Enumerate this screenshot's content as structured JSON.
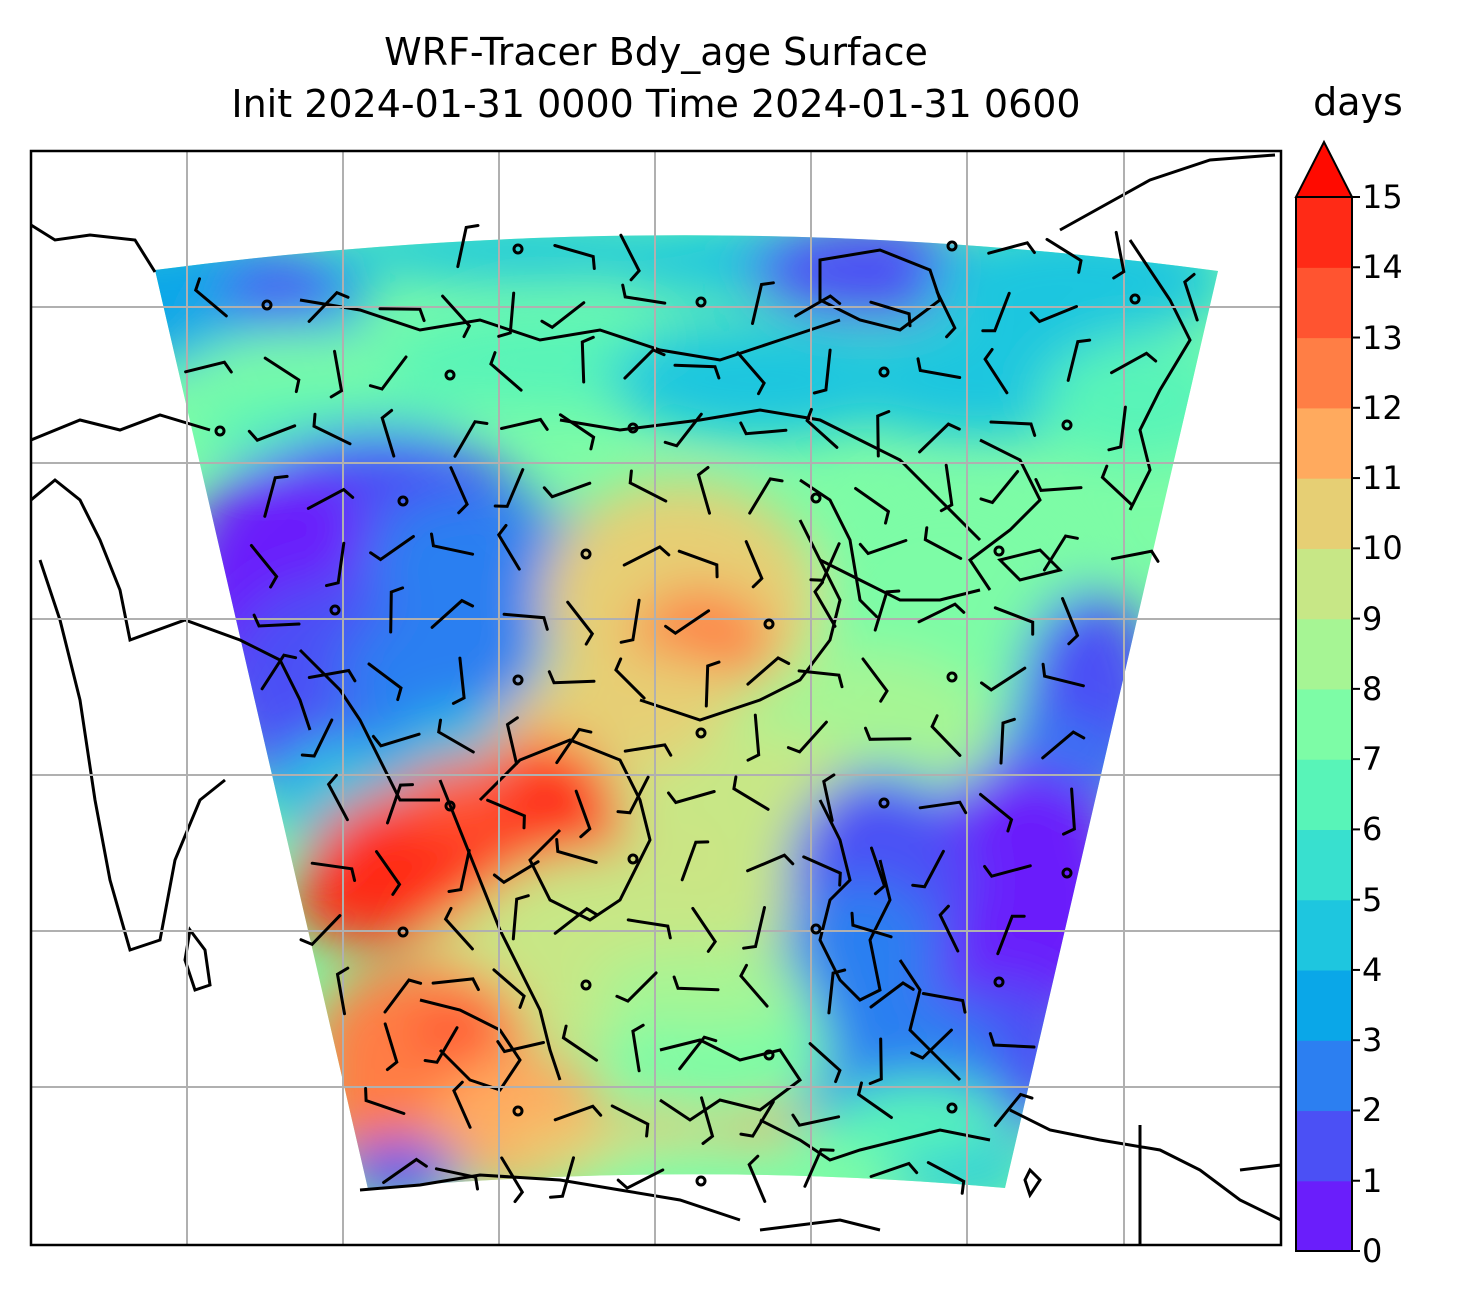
{
  "title": "WRF-Tracer Bdy_age Surface",
  "subtitle": "Init 2024-01-31 0000 Time 2024-01-31 0600",
  "chart_data": {
    "type": "heatmap",
    "title": "WRF-Tracer Bdy_age Surface",
    "subtitle": "Init 2024-01-31 0000 Time 2024-01-31 0600",
    "variable": "Bdy_age",
    "level": "Surface",
    "init_time": "2024-01-31 0000",
    "valid_time": "2024-01-31 0600",
    "grid": true,
    "overlay": [
      "coastlines",
      "wind barbs"
    ],
    "colorbar": {
      "label": "days",
      "placement": "right",
      "ticks": [
        0,
        1,
        2,
        3,
        4,
        5,
        6,
        7,
        8,
        9,
        10,
        11,
        12,
        13,
        14,
        15
      ],
      "range": [
        0,
        15
      ],
      "extend": "max",
      "colormap": "rainbow",
      "colors": [
        "#6a1efb",
        "#4b50f5",
        "#2c7ff1",
        "#0aa7e8",
        "#1ec6df",
        "#38e0cf",
        "#58f4b8",
        "#7dfca6",
        "#a6f594",
        "#c7e786",
        "#e6cf74",
        "#ffaa5e",
        "#ff7e45",
        "#ff5430",
        "#ff2a16"
      ],
      "over_color": "#ff0a00"
    }
  }
}
